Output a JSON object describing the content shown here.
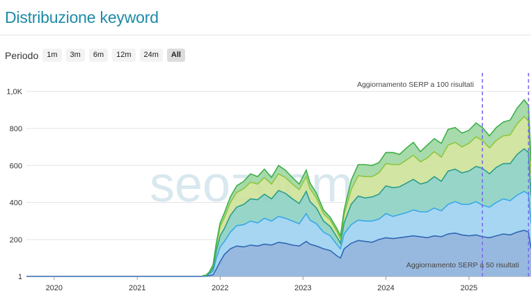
{
  "header": {
    "title": "Distribuzione keyword"
  },
  "period": {
    "label": "Periodo",
    "options": [
      "1m",
      "3m",
      "6m",
      "12m",
      "24m",
      "All"
    ],
    "selected": "All"
  },
  "watermark": "seozoom",
  "colors": {
    "s1_fill": "#8fb3dc",
    "s1_line": "#2f67b4",
    "s2_fill": "#9fd2f2",
    "s2_line": "#38a8e6",
    "s3_fill": "#8ed1c4",
    "s3_line": "#2a9d8a",
    "s4_fill": "#cfe39a",
    "s4_line": "#8cc63f",
    "s5_fill": "#9fd8a4",
    "s5_line": "#3eae49",
    "marker": "#7b68ee"
  },
  "chart_data": {
    "type": "area",
    "stacked": true,
    "x": [
      "2021-10-15",
      "2021-11-01",
      "2021-11-15",
      "2021-12-01",
      "2021-12-15",
      "2022-01-01",
      "2022-01-20",
      "2022-02-15",
      "2022-03-15",
      "2022-04-15",
      "2022-05-15",
      "2022-06-15",
      "2022-07-15",
      "2022-08-15",
      "2022-09-15",
      "2022-10-15",
      "2022-11-15",
      "2022-12-15",
      "2023-01-15",
      "2023-02-01",
      "2023-03-01",
      "2023-04-01",
      "2023-05-01",
      "2023-06-01",
      "2023-06-15",
      "2023-07-01",
      "2023-08-01",
      "2023-09-01",
      "2023-10-01",
      "2023-11-01",
      "2023-12-01",
      "2024-01-01",
      "2024-02-01",
      "2024-03-01",
      "2024-04-01",
      "2024-05-01",
      "2024-06-01",
      "2024-07-01",
      "2024-08-01",
      "2024-09-01",
      "2024-10-01",
      "2024-11-01",
      "2024-12-01",
      "2025-01-01",
      "2025-02-01",
      "2025-03-01",
      "2025-04-01",
      "2025-05-01",
      "2025-06-01",
      "2025-07-01",
      "2025-08-01",
      "2025-09-01",
      "2025-09-20",
      "2025-10-01"
    ],
    "xticks": [
      "2020",
      "2021",
      "2022",
      "2023",
      "2024",
      "2025"
    ],
    "yticks": [
      "1",
      "200",
      "400",
      "600",
      "800",
      "1,0K"
    ],
    "ylim": [
      1,
      1100
    ],
    "xlim": [
      "2019-09-01",
      "2025-10-01"
    ],
    "series": [
      {
        "values": [
          1,
          2,
          5,
          10,
          40,
          80,
          120,
          150,
          165,
          160,
          170,
          165,
          175,
          170,
          185,
          180,
          170,
          165,
          190,
          175,
          165,
          150,
          140,
          110,
          100,
          150,
          180,
          195,
          190,
          185,
          200,
          210,
          205,
          210,
          215,
          220,
          215,
          210,
          220,
          215,
          230,
          235,
          225,
          220,
          225,
          215,
          210,
          220,
          230,
          225,
          240,
          250,
          240,
          150
        ]
      },
      {
        "values": [
          1,
          3,
          10,
          20,
          60,
          80,
          70,
          90,
          110,
          120,
          130,
          125,
          140,
          130,
          140,
          135,
          130,
          120,
          150,
          130,
          120,
          90,
          80,
          60,
          50,
          80,
          100,
          110,
          110,
          115,
          110,
          130,
          120,
          125,
          130,
          140,
          135,
          140,
          150,
          140,
          160,
          170,
          165,
          170,
          180,
          170,
          165,
          180,
          190,
          185,
          200,
          210,
          205,
          140
        ]
      },
      {
        "values": [
          1,
          2,
          5,
          15,
          40,
          60,
          70,
          90,
          100,
          110,
          120,
          125,
          130,
          120,
          140,
          135,
          120,
          110,
          120,
          100,
          85,
          60,
          50,
          40,
          30,
          60,
          110,
          130,
          125,
          130,
          135,
          150,
          155,
          150,
          160,
          165,
          150,
          160,
          170,
          160,
          180,
          175,
          170,
          180,
          190,
          200,
          180,
          190,
          190,
          200,
          220,
          230,
          225,
          150
        ]
      },
      {
        "values": [
          1,
          1,
          5,
          15,
          30,
          50,
          60,
          70,
          80,
          85,
          90,
          85,
          90,
          80,
          90,
          85,
          80,
          75,
          80,
          70,
          55,
          40,
          35,
          30,
          25,
          45,
          80,
          110,
          115,
          110,
          115,
          120,
          125,
          120,
          125,
          130,
          120,
          130,
          135,
          130,
          140,
          145,
          140,
          150,
          160,
          150,
          140,
          145,
          150,
          155,
          165,
          175,
          170,
          120
        ]
      },
      {
        "values": [
          1,
          1,
          1,
          5,
          10,
          20,
          25,
          30,
          35,
          40,
          45,
          40,
          45,
          35,
          45,
          40,
          35,
          30,
          35,
          30,
          25,
          20,
          15,
          15,
          15,
          25,
          50,
          60,
          65,
          60,
          55,
          60,
          65,
          55,
          65,
          70,
          55,
          70,
          70,
          75,
          85,
          80,
          75,
          70,
          75,
          70,
          65,
          70,
          75,
          80,
          85,
          90,
          85,
          60
        ]
      }
    ],
    "markers": [
      {
        "x": "2025-03-01",
        "label": "Aggiornamento SERP a 100 risultati"
      },
      {
        "x": "2025-09-20",
        "label": "Aggiornamento SERP a 50 risultati"
      }
    ],
    "grid": true
  }
}
